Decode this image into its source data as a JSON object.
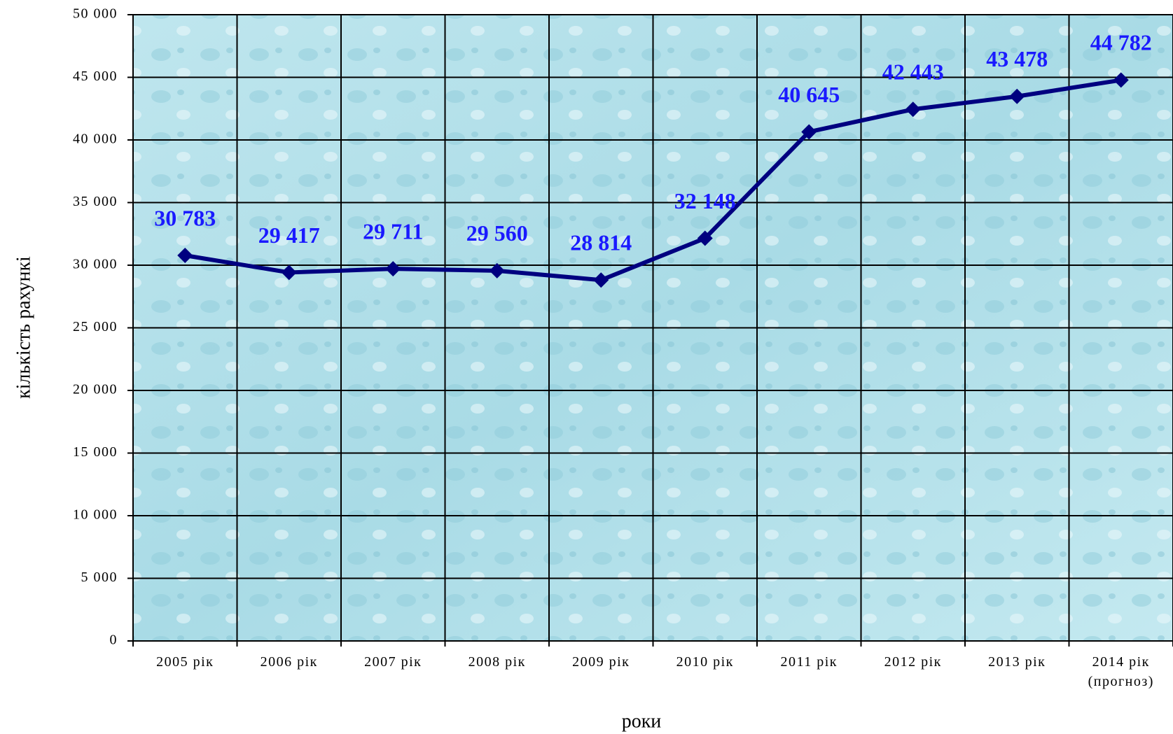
{
  "chart_data": {
    "type": "line",
    "y_label": "кількість рахункі",
    "x_label": "роки",
    "categories": [
      "2005 рік",
      "2006 рік",
      "2007 рік",
      "2008 рік",
      "2009 рік",
      "2010 рік",
      "2011 рік",
      "2012 рік",
      "2013 рік",
      "2014 рік (прогноз)"
    ],
    "series": [
      {
        "color": "#000080",
        "label_color": "#1a1aff",
        "values": [
          30783,
          29417,
          29711,
          29560,
          28814,
          32148,
          40645,
          42443,
          43478,
          44782
        ],
        "value_labels": [
          "30 783",
          "29 417",
          "29 711",
          "29 560",
          "28 814",
          "32 148",
          "40 645",
          "42 443",
          "43 478",
          "44 782"
        ]
      }
    ],
    "ylim": [
      0,
      50000
    ],
    "yticks": [
      {
        "value": 0,
        "label": "0"
      },
      {
        "value": 5000,
        "label": "5 000"
      },
      {
        "value": 10000,
        "label": "10 000"
      },
      {
        "value": 15000,
        "label": "15 000"
      },
      {
        "value": 20000,
        "label": "20 000"
      },
      {
        "value": 25000,
        "label": "25 000"
      },
      {
        "value": 30000,
        "label": "30 000"
      },
      {
        "value": 35000,
        "label": "35 000"
      },
      {
        "value": 40000,
        "label": "40 000"
      },
      {
        "value": 45000,
        "label": "45 000"
      },
      {
        "value": 50000,
        "label": "50 000"
      }
    ],
    "grid": true
  }
}
